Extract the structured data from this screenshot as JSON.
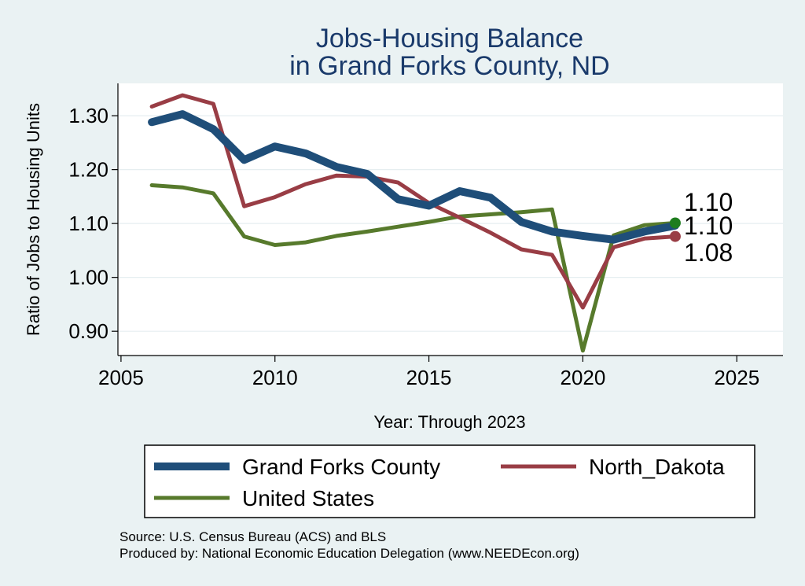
{
  "chart_data": {
    "type": "line",
    "title": "Jobs-Housing Balance",
    "subtitle": "in Grand Forks County, ND",
    "xlabel": "Year: Through 2023",
    "ylabel": "Ratio of Jobs to Housing Units",
    "xlim": [
      2004.9,
      2026.5
    ],
    "ylim": [
      0.855,
      1.36
    ],
    "x_ticks": [
      2005,
      2010,
      2015,
      2020,
      2025
    ],
    "y_ticks": [
      0.9,
      1.0,
      1.1,
      1.2,
      1.3
    ],
    "y_tick_labels": [
      "0.90",
      "1.00",
      "1.10",
      "1.20",
      "1.30"
    ],
    "grid": true,
    "legend_position": "bottom",
    "x": [
      2006,
      2007,
      2008,
      2009,
      2010,
      2011,
      2012,
      2013,
      2014,
      2015,
      2016,
      2017,
      2018,
      2019,
      2020,
      2021,
      2022,
      2023
    ],
    "series": [
      {
        "name": "Grand Forks County",
        "color": "#1f4e79",
        "width": "thick",
        "values": [
          1.288,
          1.303,
          1.275,
          1.218,
          1.243,
          1.23,
          1.205,
          1.192,
          1.145,
          1.133,
          1.16,
          1.148,
          1.103,
          1.085,
          1.077,
          1.07,
          1.085,
          1.096
        ],
        "end_label": "1.10",
        "end_marker": false
      },
      {
        "name": "North_Dakota",
        "color": "#993d45",
        "width": "medium",
        "values": [
          1.317,
          1.338,
          1.322,
          1.132,
          1.149,
          1.173,
          1.189,
          1.187,
          1.176,
          1.138,
          1.111,
          1.083,
          1.052,
          1.042,
          0.944,
          1.056,
          1.072,
          1.076
        ],
        "end_label": "1.08",
        "end_marker": true
      },
      {
        "name": "United States",
        "color": "#577a2c",
        "width": "medium",
        "values": [
          1.171,
          1.167,
          1.156,
          1.076,
          1.06,
          1.065,
          1.077,
          1.085,
          1.094,
          1.103,
          1.113,
          1.117,
          1.121,
          1.126,
          0.864,
          1.078,
          1.097,
          1.101
        ],
        "end_label": "1.10",
        "end_marker": true,
        "marker_color": "#1e7d1e"
      }
    ],
    "source_lines": [
      "Source: U.S. Census Bureau (ACS) and BLS",
      "Produced by: National Economic Education Delegation (www.NEEDEcon.org)"
    ]
  }
}
